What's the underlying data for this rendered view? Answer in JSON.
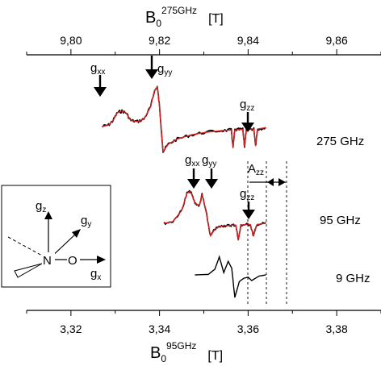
{
  "chart_data": {
    "type": "line",
    "top_axis": {
      "label_main": "B",
      "label_sub": "0",
      "label_sup": "275GHz",
      "unit": "[T]",
      "ticks": [
        "9,80",
        "9,82",
        "9,84",
        "9,86"
      ],
      "range": [
        9.79,
        9.87
      ]
    },
    "bottom_axis": {
      "label_main": "B",
      "label_sub": "0",
      "label_sup": "95GHz",
      "unit": "[T]",
      "ticks": [
        "3,32",
        "3,34",
        "3,36",
        "3,38"
      ],
      "range": [
        3.31,
        3.39
      ]
    },
    "series": [
      {
        "name": "275 GHz",
        "x_axis": "top",
        "x": [
          9.807,
          9.8085,
          9.8095,
          9.8105,
          9.8115,
          9.8125,
          9.8135,
          9.815,
          9.8165,
          9.818,
          9.8188,
          9.8195,
          9.82,
          9.8208,
          9.822,
          9.824,
          9.827,
          9.83,
          9.834,
          9.8362,
          9.8366,
          9.837,
          9.838,
          9.8388,
          9.8392,
          9.8396,
          9.8405,
          9.8413,
          9.8417,
          9.8421,
          9.844
        ],
        "y": [
          0.0,
          0.03,
          0.12,
          0.28,
          0.31,
          0.27,
          0.12,
          0.1,
          0.15,
          0.4,
          0.7,
          0.8,
          0.4,
          -0.5,
          -0.35,
          -0.25,
          -0.17,
          -0.12,
          -0.08,
          -0.07,
          -0.42,
          -0.07,
          -0.06,
          -0.06,
          -0.4,
          -0.05,
          -0.05,
          -0.05,
          -0.38,
          -0.05,
          -0.02
        ]
      },
      {
        "name": "95 GHz",
        "x_axis": "bottom",
        "x": [
          3.341,
          3.343,
          3.345,
          3.3462,
          3.347,
          3.348,
          3.349,
          3.3496,
          3.3505,
          3.3515,
          3.3525,
          3.3535,
          3.3545,
          3.3555,
          3.3565,
          3.3572,
          3.3578,
          3.3584,
          3.3595,
          3.3605,
          3.3612,
          3.362,
          3.364
        ],
        "y": [
          0.0,
          0.03,
          0.22,
          0.52,
          0.55,
          0.35,
          0.3,
          0.5,
          0.2,
          -0.22,
          -0.1,
          -0.06,
          -0.04,
          -0.04,
          -0.03,
          -0.03,
          -0.28,
          -0.03,
          -0.02,
          -0.02,
          -0.22,
          -0.02,
          0.0
        ]
      },
      {
        "name": "9 GHz",
        "x_axis": "bottom",
        "x": [
          3.348,
          3.351,
          3.3525,
          3.3535,
          3.3545,
          3.3555,
          3.3563,
          3.357,
          3.358,
          3.359,
          3.36,
          3.3608,
          3.3625,
          3.364
        ],
        "y": [
          0.0,
          0.02,
          0.25,
          0.8,
          0.1,
          0.6,
          0.3,
          -1.0,
          -0.3,
          -0.15,
          -0.1,
          -0.25,
          -0.05,
          0.0
        ]
      }
    ],
    "labels": [
      "275 GHz",
      "95 GHz",
      "9 GHz"
    ],
    "annotations": {
      "gxx": "g",
      "gxx_sub": "xx",
      "gyy": "g",
      "gyy_sub": "yy",
      "gzz": "g",
      "gzz_sub": "zz",
      "azz": "A",
      "azz_sub": "zz"
    },
    "inset": {
      "gz": "g",
      "gz_sub": "z",
      "gy": "g",
      "gy_sub": "y",
      "gx": "g",
      "gx_sub": "x",
      "n": "N",
      "o": "O"
    },
    "colors": {
      "experiment": "#000000",
      "simulation": "#d62020"
    }
  }
}
